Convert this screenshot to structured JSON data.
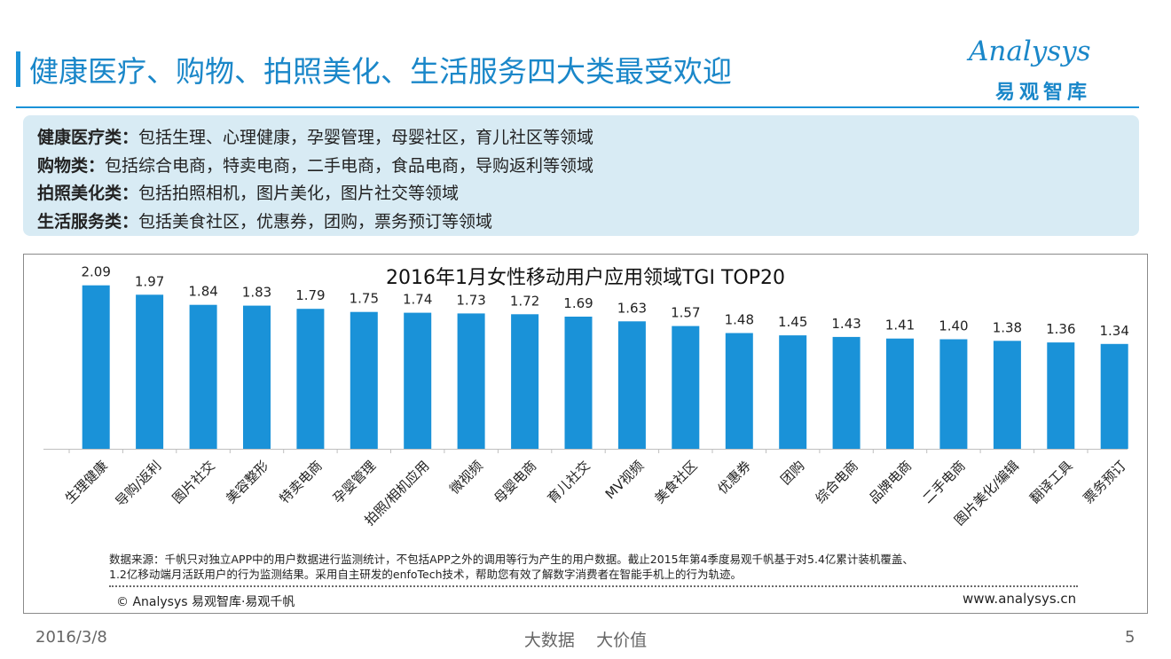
{
  "header": {
    "title": "健康医疗、购物、拍照美化、生活服务四大类最受欢迎",
    "logo_en": "Analysys",
    "logo_cn": "易观智库"
  },
  "info": [
    {
      "label": "健康医疗类：",
      "text": "包括生理、心理健康，孕婴管理，母婴社区，育儿社区等领域"
    },
    {
      "label": "购物类：",
      "text": "包括综合电商，特卖电商，二手电商，食品电商，导购返利等领域"
    },
    {
      "label": "拍照美化类：",
      "text": "包括拍照相机，图片美化，图片社交等领域"
    },
    {
      "label": "生活服务类：",
      "text": "包括美食社区，优惠券，团购，票务预订等领域"
    }
  ],
  "chart_data": {
    "type": "bar",
    "title": "2016年1月女性移动用户应用领域TGI TOP20",
    "categories": [
      "生理健康",
      "导购/返利",
      "图片社交",
      "美容整形",
      "特卖电商",
      "孕婴管理",
      "拍照/相机应用",
      "微视频",
      "母婴电商",
      "育儿社交",
      "MV视频",
      "美食社区",
      "优惠券",
      "团购",
      "综合电商",
      "品牌电商",
      "二手电商",
      "图片美化/编辑",
      "翻译工具",
      "票务预订"
    ],
    "values": [
      2.09,
      1.97,
      1.84,
      1.83,
      1.79,
      1.75,
      1.74,
      1.73,
      1.72,
      1.69,
      1.63,
      1.57,
      1.48,
      1.45,
      1.43,
      1.41,
      1.4,
      1.38,
      1.36,
      1.34
    ],
    "value_labels": [
      "2.09",
      "1.97",
      "1.84",
      "1.83",
      "1.79",
      "1.75",
      "1.74",
      "1.73",
      "1.72",
      "1.69",
      "1.63",
      "1.57",
      "1.48",
      "1.45",
      "1.43",
      "1.41",
      "1.40",
      "1.38",
      "1.36",
      "1.34"
    ],
    "ylim": [
      0,
      2.2
    ],
    "xlabel": "",
    "ylabel": "",
    "grid": false,
    "bar_color": "#1a92d8"
  },
  "source": {
    "line1": "数据来源：千帆只对独立APP中的用户数据进行监测统计，不包括APP之外的调用等行为产生的用户数据。截止2015年第4季度易观千帆基于对5.4亿累计装机覆盖、",
    "line2": "1.2亿移动端月活跃用户的行为监测结果。采用自主研发的enfoTech技术，帮助您有效了解数字消费者在智能手机上的行为轨迹。",
    "copyright": "© Analysys 易观智库·易观千帆",
    "website": "www.analysys.cn"
  },
  "footer": {
    "date": "2016/3/8",
    "slogan": "大数据    大价值",
    "page": "5"
  }
}
